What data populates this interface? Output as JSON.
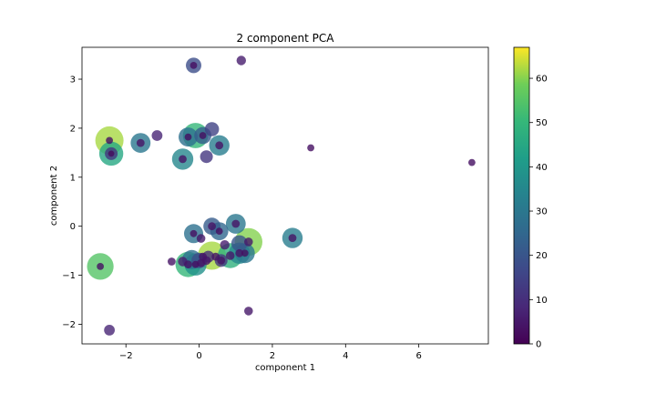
{
  "chart_data": {
    "type": "scatter",
    "title": "2 component PCA",
    "xlabel": "component 1",
    "ylabel": "component 2",
    "xlim": [
      -3.2,
      7.9
    ],
    "ylim": [
      -2.4,
      3.65
    ],
    "xticks": [
      -2,
      0,
      2,
      4,
      6
    ],
    "yticks": [
      -2,
      -1,
      0,
      1,
      2,
      3
    ],
    "xtick_labels": [
      "−2",
      "0",
      "2",
      "4",
      "6"
    ],
    "ytick_labels": [
      "−2",
      "−1",
      "0",
      "1",
      "2",
      "3"
    ],
    "grid": false,
    "colorbar": {
      "colormap": "viridis",
      "range": [
        0,
        67
      ],
      "ticks": [
        0,
        10,
        20,
        30,
        40,
        50,
        60
      ],
      "tick_labels": [
        "0",
        "10",
        "20",
        "30",
        "40",
        "50",
        "60"
      ]
    },
    "marker_alpha": 0.8,
    "points": [
      {
        "x": -2.45,
        "y": 1.75,
        "c": 62
      },
      {
        "x": -2.45,
        "y": 1.75,
        "c": 3
      },
      {
        "x": -2.4,
        "y": 1.48,
        "c": 45
      },
      {
        "x": -2.4,
        "y": 1.48,
        "c": 12
      },
      {
        "x": -2.4,
        "y": 1.48,
        "c": 2
      },
      {
        "x": -1.6,
        "y": 1.7,
        "c": 30
      },
      {
        "x": -1.6,
        "y": 1.7,
        "c": 4
      },
      {
        "x": -1.15,
        "y": 1.85,
        "c": 8
      },
      {
        "x": -0.1,
        "y": 1.85,
        "c": 50
      },
      {
        "x": -0.3,
        "y": 1.82,
        "c": 28
      },
      {
        "x": -0.3,
        "y": 1.82,
        "c": 3
      },
      {
        "x": 0.1,
        "y": 1.85,
        "c": 22
      },
      {
        "x": 0.1,
        "y": 1.85,
        "c": 3
      },
      {
        "x": 0.35,
        "y": 1.98,
        "c": 15
      },
      {
        "x": 0.55,
        "y": 1.65,
        "c": 32
      },
      {
        "x": 0.55,
        "y": 1.65,
        "c": 4
      },
      {
        "x": -0.45,
        "y": 1.37,
        "c": 35
      },
      {
        "x": -0.45,
        "y": 1.37,
        "c": 4
      },
      {
        "x": 0.2,
        "y": 1.42,
        "c": 12
      },
      {
        "x": -0.15,
        "y": 3.28,
        "c": 18
      },
      {
        "x": -0.15,
        "y": 3.28,
        "c": 3
      },
      {
        "x": 1.15,
        "y": 3.38,
        "c": 6
      },
      {
        "x": 3.05,
        "y": 1.6,
        "c": 3
      },
      {
        "x": 7.45,
        "y": 1.3,
        "c": 3
      },
      {
        "x": -2.7,
        "y": -0.82,
        "c": 55
      },
      {
        "x": -2.7,
        "y": -0.82,
        "c": 3
      },
      {
        "x": -2.45,
        "y": -2.12,
        "c": 8
      },
      {
        "x": 1.35,
        "y": -1.73,
        "c": 5
      },
      {
        "x": -0.75,
        "y": -0.72,
        "c": 4
      },
      {
        "x": -0.15,
        "y": -0.15,
        "c": 28
      },
      {
        "x": -0.15,
        "y": -0.15,
        "c": 3
      },
      {
        "x": 0.05,
        "y": -0.25,
        "c": 5
      },
      {
        "x": 0.35,
        "y": 0.0,
        "c": 22
      },
      {
        "x": 0.35,
        "y": 0.0,
        "c": 4
      },
      {
        "x": 0.55,
        "y": -0.1,
        "c": 25
      },
      {
        "x": 0.55,
        "y": -0.1,
        "c": 3
      },
      {
        "x": 1.0,
        "y": 0.05,
        "c": 30
      },
      {
        "x": 1.0,
        "y": 0.05,
        "c": 4
      },
      {
        "x": 1.1,
        "y": -0.35,
        "c": 20
      },
      {
        "x": 1.35,
        "y": -0.32,
        "c": 60
      },
      {
        "x": 1.35,
        "y": -0.32,
        "c": 5
      },
      {
        "x": 2.55,
        "y": -0.24,
        "c": 32
      },
      {
        "x": 2.55,
        "y": -0.24,
        "c": 4
      },
      {
        "x": 0.7,
        "y": -0.38,
        "c": 6
      },
      {
        "x": 0.35,
        "y": -0.6,
        "c": 62
      },
      {
        "x": 0.25,
        "y": -0.62,
        "c": 10
      },
      {
        "x": 0.1,
        "y": -0.62,
        "c": 4
      },
      {
        "x": 0.45,
        "y": -0.62,
        "c": 4
      },
      {
        "x": 0.6,
        "y": -0.7,
        "c": 12
      },
      {
        "x": 0.6,
        "y": -0.7,
        "c": 4
      },
      {
        "x": 0.85,
        "y": -0.6,
        "c": 48
      },
      {
        "x": 0.85,
        "y": -0.6,
        "c": 5
      },
      {
        "x": 1.1,
        "y": -0.55,
        "c": 35
      },
      {
        "x": 1.1,
        "y": -0.55,
        "c": 4
      },
      {
        "x": 1.25,
        "y": -0.55,
        "c": 30
      },
      {
        "x": 1.25,
        "y": -0.55,
        "c": 3
      },
      {
        "x": -0.3,
        "y": -0.78,
        "c": 50
      },
      {
        "x": -0.3,
        "y": -0.78,
        "c": 4
      },
      {
        "x": -0.1,
        "y": -0.78,
        "c": 38
      },
      {
        "x": -0.1,
        "y": -0.78,
        "c": 3
      },
      {
        "x": -0.2,
        "y": -0.68,
        "c": 28
      },
      {
        "x": 0.0,
        "y": -0.7,
        "c": 18
      },
      {
        "x": -0.45,
        "y": -0.72,
        "c": 6
      },
      {
        "x": 0.2,
        "y": -0.7,
        "c": 5
      },
      {
        "x": 0.05,
        "y": -0.75,
        "c": 4
      }
    ]
  }
}
